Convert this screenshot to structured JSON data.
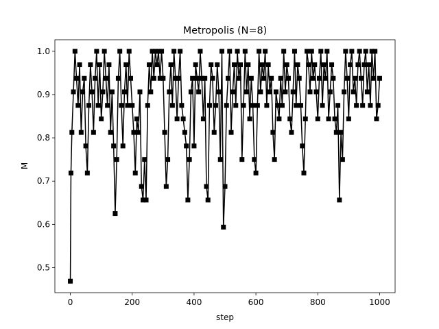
{
  "chart_data": {
    "type": "line",
    "title": "Metropolis (N=8)",
    "x_label": "step",
    "y_label": "M",
    "color": "#000000",
    "marker": "square",
    "xlim": [
      -50,
      1050
    ],
    "xticks": [
      0,
      200,
      400,
      600,
      800,
      1000
    ],
    "ylim": [
      0.4422,
      1.0266
    ],
    "yticks": [
      0.5,
      0.6,
      0.7,
      0.8,
      0.9,
      {
        "value": 1,
        "label": "1.0"
      }
    ],
    "x": [
      0,
      2,
      5,
      10,
      15,
      20,
      25,
      30,
      35,
      40,
      45,
      50,
      55,
      60,
      65,
      70,
      75,
      80,
      85,
      90,
      95,
      100,
      105,
      110,
      115,
      120,
      125,
      130,
      135,
      140,
      145,
      150,
      155,
      160,
      165,
      170,
      175,
      180,
      185,
      190,
      195,
      200,
      205,
      210,
      215,
      220,
      225,
      230,
      235,
      240,
      245,
      250,
      255,
      260,
      265,
      270,
      275,
      280,
      285,
      290,
      295,
      300,
      305,
      310,
      315,
      320,
      325,
      330,
      335,
      340,
      345,
      350,
      355,
      360,
      365,
      370,
      375,
      380,
      385,
      390,
      395,
      400,
      405,
      410,
      415,
      420,
      425,
      430,
      435,
      440,
      445,
      450,
      455,
      460,
      465,
      470,
      475,
      480,
      485,
      490,
      495,
      500,
      505,
      510,
      515,
      520,
      525,
      530,
      535,
      540,
      545,
      550,
      555,
      560,
      565,
      570,
      575,
      580,
      585,
      590,
      595,
      600,
      605,
      610,
      615,
      620,
      625,
      630,
      635,
      640,
      645,
      650,
      655,
      660,
      665,
      670,
      675,
      680,
      685,
      690,
      695,
      700,
      705,
      710,
      715,
      720,
      725,
      730,
      735,
      740,
      745,
      750,
      755,
      760,
      765,
      770,
      775,
      780,
      785,
      790,
      795,
      800,
      805,
      810,
      815,
      820,
      825,
      830,
      835,
      840,
      845,
      850,
      855,
      860,
      865,
      870,
      875,
      880,
      885,
      890,
      895,
      900,
      905,
      910,
      915,
      920,
      925,
      930,
      935,
      940,
      945,
      950,
      955,
      960,
      965,
      970,
      975,
      980,
      985,
      990,
      995,
      1000
    ],
    "values": [
      0.46875,
      0.71875,
      0.8125,
      0.90625,
      1,
      0.9375,
      0.875,
      0.96875,
      0.8125,
      0.90625,
      0.9375,
      0.78125,
      0.71875,
      0.875,
      0.96875,
      0.90625,
      0.8125,
      0.9375,
      1,
      0.875,
      0.96875,
      0.84375,
      0.90625,
      1,
      0.9375,
      0.875,
      0.96875,
      0.8125,
      0.90625,
      0.78125,
      0.625,
      0.75,
      0.9375,
      1,
      0.875,
      0.78125,
      0.90625,
      0.96875,
      0.875,
      1,
      0.9375,
      0.875,
      0.8125,
      0.71875,
      0.84375,
      0.8125,
      0.90625,
      0.6875,
      0.65625,
      0.75,
      0.65625,
      0.875,
      0.96875,
      0.90625,
      1,
      0.9375,
      1,
      0.96875,
      1,
      0.9375,
      1,
      0.9375,
      0.8125,
      0.6875,
      0.75,
      0.90625,
      0.96875,
      0.875,
      1,
      0.9375,
      0.84375,
      0.9375,
      1,
      0.875,
      0.84375,
      0.8125,
      0.78125,
      0.65625,
      0.75,
      0.90625,
      0.9375,
      0.78125,
      0.96875,
      0.9375,
      0.90625,
      1,
      0.9375,
      0.84375,
      0.9375,
      0.6875,
      0.65625,
      0.875,
      0.96875,
      0.9375,
      0.8125,
      0.875,
      0.96875,
      0.90625,
      0.75,
      1,
      0.59375,
      0.6875,
      0.875,
      0.9375,
      1,
      0.8125,
      0.90625,
      0.96875,
      0.875,
      1,
      0.9375,
      0.96875,
      0.75,
      0.875,
      1,
      0.90625,
      0.96875,
      0.84375,
      0.9375,
      0.875,
      0.75,
      0.71875,
      0.875,
      1,
      0.90625,
      0.96875,
      0.9375,
      1,
      0.875,
      0.96875,
      0.90625,
      0.9375,
      0.8125,
      0.75,
      0.90625,
      0.875,
      0.84375,
      0.9375,
      0.875,
      1,
      0.90625,
      0.96875,
      0.9375,
      0.84375,
      0.8125,
      0.90625,
      1,
      0.875,
      0.96875,
      0.9375,
      0.875,
      0.78125,
      0.71875,
      0.84375,
      1,
      0.96875,
      0.90625,
      1,
      0.9375,
      0.96875,
      0.90625,
      0.84375,
      0.9375,
      1,
      0.875,
      0.96875,
      0.9375,
      1,
      0.84375,
      0.90625,
      0.96875,
      0.9375,
      0.84375,
      0.8125,
      0.875,
      0.65625,
      0.8125,
      0.75,
      0.90625,
      1,
      0.9375,
      0.84375,
      0.96875,
      1,
      0.90625,
      0.9375,
      0.875,
      0.96875,
      1,
      0.9375,
      0.875,
      0.96875,
      1,
      0.90625,
      0.96875,
      0.875,
      1,
      0.9375,
      1,
      0.84375,
      0.875,
      0.9375
    ]
  }
}
